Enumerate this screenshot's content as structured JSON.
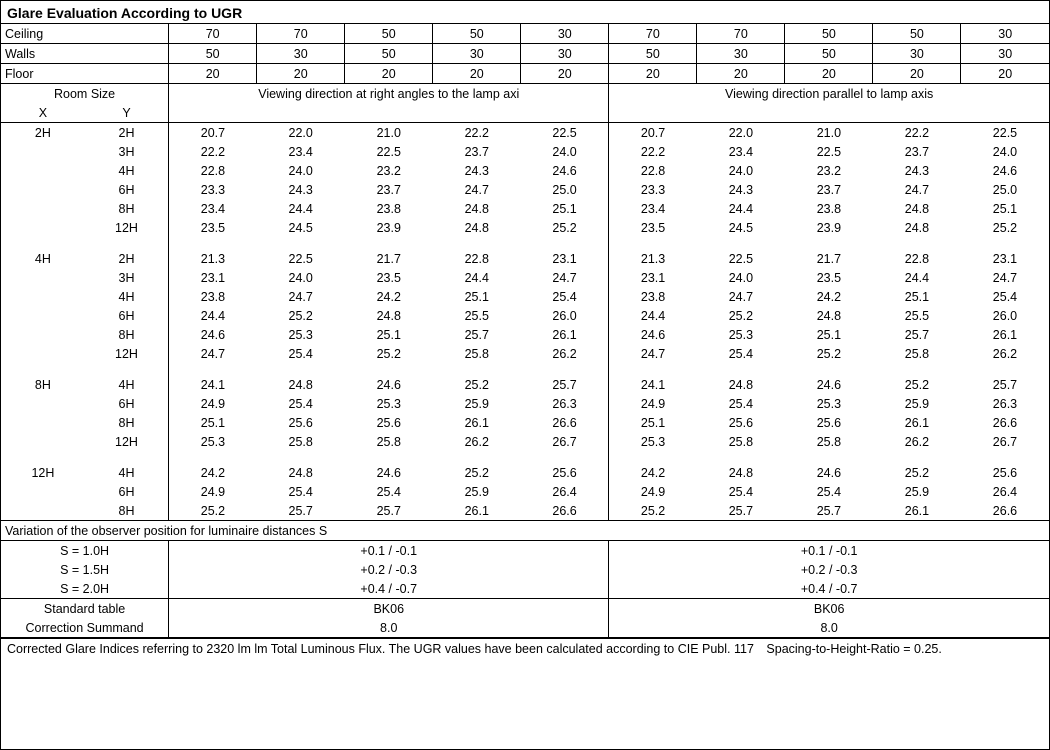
{
  "title": "Glare Evaluation According to UGR",
  "header": {
    "labels": {
      "ceiling": "Ceiling",
      "walls": "Walls",
      "floor": "Floor"
    },
    "ceiling": [
      "70",
      "70",
      "50",
      "50",
      "30",
      "70",
      "70",
      "50",
      "50",
      "30"
    ],
    "walls": [
      "50",
      "30",
      "50",
      "30",
      "30",
      "50",
      "30",
      "50",
      "30",
      "30"
    ],
    "floor": [
      "20",
      "20",
      "20",
      "20",
      "20",
      "20",
      "20",
      "20",
      "20",
      "20"
    ]
  },
  "room_size": {
    "label": "Room Size",
    "x": "X",
    "y": "Y"
  },
  "direction": {
    "right_angles": "Viewing direction at right angles to the lamp axi",
    "parallel": "Viewing direction parallel to lamp axis"
  },
  "groups": [
    {
      "x": "2H",
      "rows": [
        {
          "y": "2H",
          "v": [
            "20.7",
            "22.0",
            "21.0",
            "22.2",
            "22.5",
            "20.7",
            "22.0",
            "21.0",
            "22.2",
            "22.5"
          ]
        },
        {
          "y": "3H",
          "v": [
            "22.2",
            "23.4",
            "22.5",
            "23.7",
            "24.0",
            "22.2",
            "23.4",
            "22.5",
            "23.7",
            "24.0"
          ]
        },
        {
          "y": "4H",
          "v": [
            "22.8",
            "24.0",
            "23.2",
            "24.3",
            "24.6",
            "22.8",
            "24.0",
            "23.2",
            "24.3",
            "24.6"
          ]
        },
        {
          "y": "6H",
          "v": [
            "23.3",
            "24.3",
            "23.7",
            "24.7",
            "25.0",
            "23.3",
            "24.3",
            "23.7",
            "24.7",
            "25.0"
          ]
        },
        {
          "y": "8H",
          "v": [
            "23.4",
            "24.4",
            "23.8",
            "24.8",
            "25.1",
            "23.4",
            "24.4",
            "23.8",
            "24.8",
            "25.1"
          ]
        },
        {
          "y": "12H",
          "v": [
            "23.5",
            "24.5",
            "23.9",
            "24.8",
            "25.2",
            "23.5",
            "24.5",
            "23.9",
            "24.8",
            "25.2"
          ]
        }
      ]
    },
    {
      "x": "4H",
      "rows": [
        {
          "y": "2H",
          "v": [
            "21.3",
            "22.5",
            "21.7",
            "22.8",
            "23.1",
            "21.3",
            "22.5",
            "21.7",
            "22.8",
            "23.1"
          ]
        },
        {
          "y": "3H",
          "v": [
            "23.1",
            "24.0",
            "23.5",
            "24.4",
            "24.7",
            "23.1",
            "24.0",
            "23.5",
            "24.4",
            "24.7"
          ]
        },
        {
          "y": "4H",
          "v": [
            "23.8",
            "24.7",
            "24.2",
            "25.1",
            "25.4",
            "23.8",
            "24.7",
            "24.2",
            "25.1",
            "25.4"
          ]
        },
        {
          "y": "6H",
          "v": [
            "24.4",
            "25.2",
            "24.8",
            "25.5",
            "26.0",
            "24.4",
            "25.2",
            "24.8",
            "25.5",
            "26.0"
          ]
        },
        {
          "y": "8H",
          "v": [
            "24.6",
            "25.3",
            "25.1",
            "25.7",
            "26.1",
            "24.6",
            "25.3",
            "25.1",
            "25.7",
            "26.1"
          ]
        },
        {
          "y": "12H",
          "v": [
            "24.7",
            "25.4",
            "25.2",
            "25.8",
            "26.2",
            "24.7",
            "25.4",
            "25.2",
            "25.8",
            "26.2"
          ]
        }
      ]
    },
    {
      "x": "8H",
      "rows": [
        {
          "y": "4H",
          "v": [
            "24.1",
            "24.8",
            "24.6",
            "25.2",
            "25.7",
            "24.1",
            "24.8",
            "24.6",
            "25.2",
            "25.7"
          ]
        },
        {
          "y": "6H",
          "v": [
            "24.9",
            "25.4",
            "25.3",
            "25.9",
            "26.3",
            "24.9",
            "25.4",
            "25.3",
            "25.9",
            "26.3"
          ]
        },
        {
          "y": "8H",
          "v": [
            "25.1",
            "25.6",
            "25.6",
            "26.1",
            "26.6",
            "25.1",
            "25.6",
            "25.6",
            "26.1",
            "26.6"
          ]
        },
        {
          "y": "12H",
          "v": [
            "25.3",
            "25.8",
            "25.8",
            "26.2",
            "26.7",
            "25.3",
            "25.8",
            "25.8",
            "26.2",
            "26.7"
          ]
        }
      ]
    },
    {
      "x": "12H",
      "rows": [
        {
          "y": "4H",
          "v": [
            "24.2",
            "24.8",
            "24.6",
            "25.2",
            "25.6",
            "24.2",
            "24.8",
            "24.6",
            "25.2",
            "25.6"
          ]
        },
        {
          "y": "6H",
          "v": [
            "24.9",
            "25.4",
            "25.4",
            "25.9",
            "26.4",
            "24.9",
            "25.4",
            "25.4",
            "25.9",
            "26.4"
          ]
        },
        {
          "y": "8H",
          "v": [
            "25.2",
            "25.7",
            "25.7",
            "26.1",
            "26.6",
            "25.2",
            "25.7",
            "25.7",
            "26.1",
            "26.6"
          ]
        }
      ]
    }
  ],
  "variation": {
    "title": "Variation of the observer position for luminaire distances S",
    "rows": [
      {
        "s": "S = 1.0H",
        "a": "+0.1 / -0.1",
        "b": "+0.1 / -0.1"
      },
      {
        "s": "S = 1.5H",
        "a": "+0.2 / -0.3",
        "b": "+0.2 / -0.3"
      },
      {
        "s": "S = 2.0H",
        "a": "+0.4 / -0.7",
        "b": "+0.4 / -0.7"
      }
    ]
  },
  "standard": {
    "rows": [
      {
        "label": "Standard table",
        "a": "BK06",
        "b": "BK06"
      },
      {
        "label": "Correction Summand",
        "a": "8.0",
        "b": "8.0"
      }
    ]
  },
  "footer": "Corrected Glare Indices referring to 2320 lm lm Total Luminous Flux. The UGR values have been calculated according to CIE Publ. 117 Spacing-to-Height-Ratio = 0.25.",
  "colors": {
    "border": "#000000",
    "bg": "#ffffff",
    "text": "#000000"
  },
  "col_widths_pct": [
    8,
    8,
    8.4,
    8.4,
    8.4,
    8.4,
    8.4,
    8.4,
    8.4,
    8.4,
    8.4,
    8.4
  ]
}
